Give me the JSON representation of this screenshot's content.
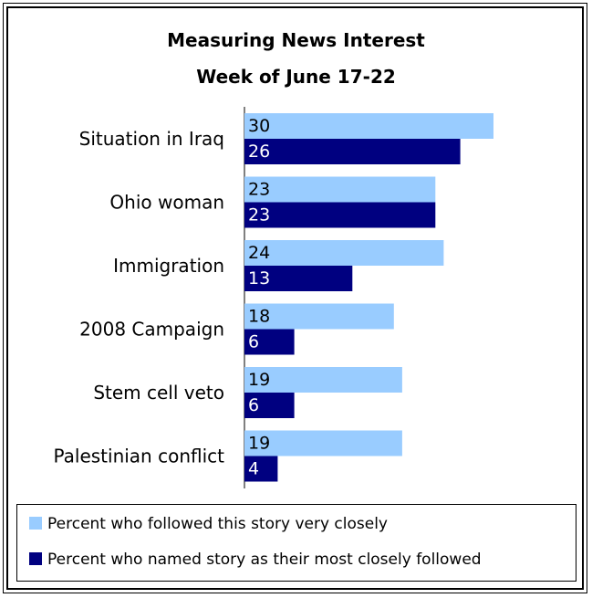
{
  "chart_data": {
    "type": "bar",
    "orientation": "horizontal",
    "title": "Measuring News Interest",
    "subtitle": "Week of June 17-22",
    "categories": [
      "Situation in Iraq",
      "Ohio woman",
      "Immigration",
      "2008 Campaign",
      "Stem cell veto",
      "Palestinian conflict"
    ],
    "series": [
      {
        "name": "Percent who followed this story very closely",
        "color": "#99ccff",
        "label_color": "#000000",
        "values": [
          30,
          23,
          24,
          18,
          19,
          19
        ]
      },
      {
        "name": "Percent who named story as their most closely followed",
        "color": "#000080",
        "label_color": "#ffffff",
        "values": [
          26,
          23,
          13,
          6,
          6,
          4
        ]
      }
    ],
    "xlim": [
      0,
      40
    ],
    "grid": false,
    "legend_position": "bottom"
  }
}
